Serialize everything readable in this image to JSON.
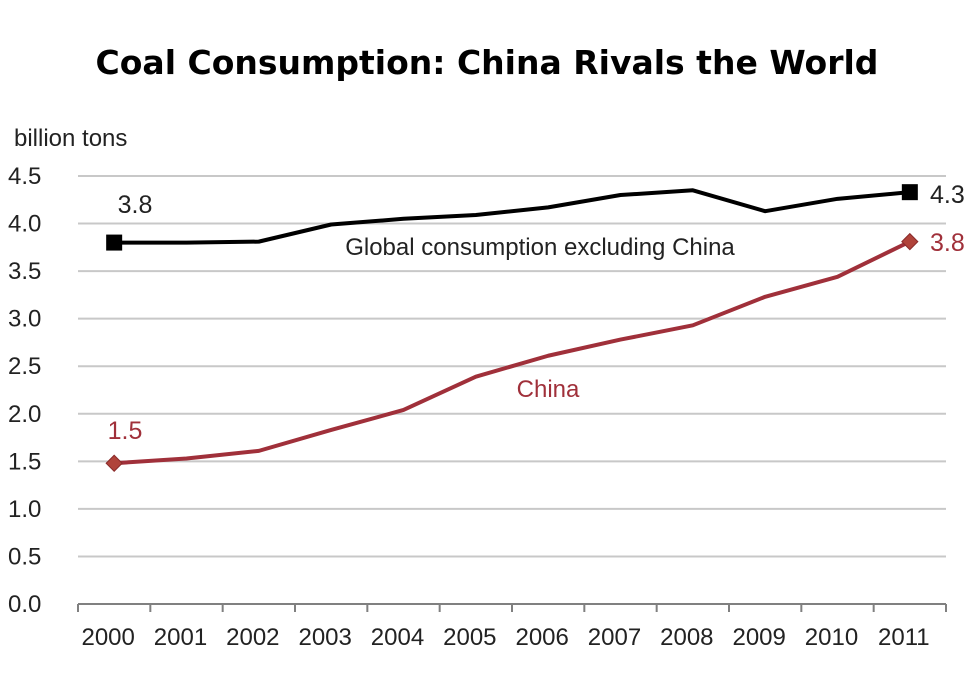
{
  "chart_data": {
    "type": "line",
    "title": "Coal Consumption: China Rivals the World",
    "ylabel": "billion tons",
    "xlabel": "",
    "ylim": [
      0,
      4.5
    ],
    "yticks": [
      "0.0",
      "0.5",
      "1.0",
      "1.5",
      "2.0",
      "2.5",
      "3.0",
      "3.5",
      "4.0",
      "4.5"
    ],
    "categories": [
      "2000",
      "2001",
      "2002",
      "2003",
      "2004",
      "2005",
      "2006",
      "2007",
      "2008",
      "2009",
      "2010",
      "2011"
    ],
    "grid": true,
    "series": [
      {
        "name": "Global consumption excluding China",
        "color": "#000000",
        "marker": "square",
        "values": [
          3.8,
          3.8,
          3.81,
          3.99,
          4.05,
          4.09,
          4.17,
          4.3,
          4.35,
          4.13,
          4.26,
          4.33
        ],
        "start_label": "3.8",
        "end_label": "4.3"
      },
      {
        "name": "China",
        "color": "#a0303a",
        "marker": "diamond",
        "values": [
          1.48,
          1.53,
          1.61,
          1.83,
          2.04,
          2.39,
          2.61,
          2.78,
          2.93,
          3.23,
          3.44,
          3.81
        ],
        "start_label": "1.5",
        "end_label": "3.8"
      }
    ]
  }
}
